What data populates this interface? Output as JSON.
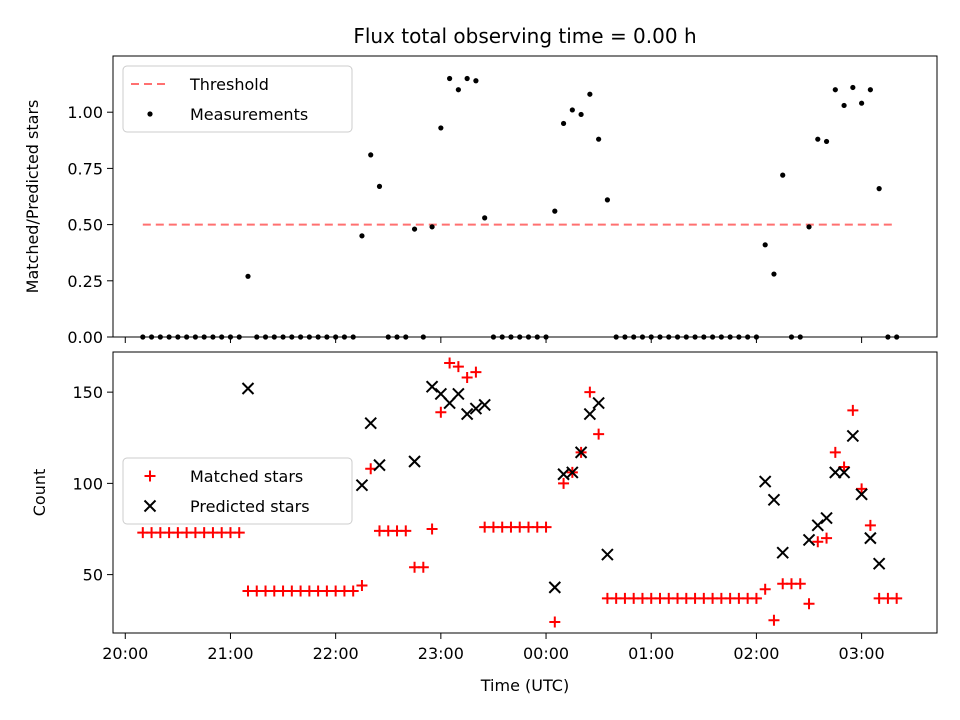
{
  "figure": {
    "title": "Flux total observing time = 0.00 h",
    "xlabel": "Time (UTC)"
  },
  "colors": {
    "threshold": "#ff7070",
    "measurements": "#000000",
    "matched": "#ff0000",
    "predicted": "#000000"
  },
  "chart_data": [
    {
      "type": "scatter",
      "ylabel": "Matched/Predicted stars",
      "xlim": [
        "19:53",
        "03:43"
      ],
      "ylim": [
        0,
        1.25
      ],
      "xticks": [
        "20:00",
        "21:00",
        "22:00",
        "23:00",
        "00:00",
        "01:00",
        "02:00",
        "03:00"
      ],
      "yticks": [
        "0.00",
        "0.25",
        "0.50",
        "0.75",
        "1.00"
      ],
      "legend_position": "top-left",
      "series": [
        {
          "name": "Threshold",
          "style": "dashed-line",
          "x": [
            "20:10",
            "03:20"
          ],
          "y": [
            0.5,
            0.5
          ]
        },
        {
          "name": "Measurements",
          "style": "dot",
          "points": [
            [
              "20:10",
              0
            ],
            [
              "20:15",
              0
            ],
            [
              "20:20",
              0
            ],
            [
              "20:25",
              0
            ],
            [
              "20:30",
              0
            ],
            [
              "20:35",
              0
            ],
            [
              "20:40",
              0
            ],
            [
              "20:45",
              0
            ],
            [
              "20:50",
              0
            ],
            [
              "20:55",
              0
            ],
            [
              "21:00",
              0
            ],
            [
              "21:05",
              0
            ],
            [
              "21:10",
              0.27
            ],
            [
              "21:15",
              0
            ],
            [
              "21:20",
              0
            ],
            [
              "21:25",
              0
            ],
            [
              "21:30",
              0
            ],
            [
              "21:35",
              0
            ],
            [
              "21:40",
              0
            ],
            [
              "21:45",
              0
            ],
            [
              "21:50",
              0
            ],
            [
              "21:55",
              0
            ],
            [
              "22:00",
              0
            ],
            [
              "22:05",
              0
            ],
            [
              "22:10",
              0
            ],
            [
              "22:15",
              0.45
            ],
            [
              "22:20",
              0.81
            ],
            [
              "22:25",
              0.67
            ],
            [
              "22:30",
              0
            ],
            [
              "22:35",
              0
            ],
            [
              "22:40",
              0
            ],
            [
              "22:45",
              0.48
            ],
            [
              "22:50",
              0
            ],
            [
              "22:55",
              0.49
            ],
            [
              "23:00",
              0.93
            ],
            [
              "23:05",
              1.15
            ],
            [
              "23:10",
              1.1
            ],
            [
              "23:15",
              1.15
            ],
            [
              "23:20",
              1.14
            ],
            [
              "23:25",
              0.53
            ],
            [
              "23:30",
              0
            ],
            [
              "23:35",
              0
            ],
            [
              "23:40",
              0
            ],
            [
              "23:45",
              0
            ],
            [
              "23:50",
              0
            ],
            [
              "23:55",
              0
            ],
            [
              "00:00",
              0
            ],
            [
              "00:05",
              0.56
            ],
            [
              "00:10",
              0.95
            ],
            [
              "00:15",
              1.01
            ],
            [
              "00:20",
              0.99
            ],
            [
              "00:25",
              1.08
            ],
            [
              "00:30",
              0.88
            ],
            [
              "00:35",
              0.61
            ],
            [
              "00:40",
              0
            ],
            [
              "00:45",
              0
            ],
            [
              "00:50",
              0
            ],
            [
              "00:55",
              0
            ],
            [
              "01:00",
              0
            ],
            [
              "01:05",
              0
            ],
            [
              "01:10",
              0
            ],
            [
              "01:15",
              0
            ],
            [
              "01:20",
              0
            ],
            [
              "01:25",
              0
            ],
            [
              "01:30",
              0
            ],
            [
              "01:35",
              0
            ],
            [
              "01:40",
              0
            ],
            [
              "01:45",
              0
            ],
            [
              "01:50",
              0
            ],
            [
              "01:55",
              0
            ],
            [
              "02:00",
              0
            ],
            [
              "02:05",
              0.41
            ],
            [
              "02:10",
              0.28
            ],
            [
              "02:15",
              0.72
            ],
            [
              "02:20",
              0
            ],
            [
              "02:25",
              0
            ],
            [
              "02:30",
              0.49
            ],
            [
              "02:35",
              0.88
            ],
            [
              "02:40",
              0.87
            ],
            [
              "02:45",
              1.1
            ],
            [
              "02:50",
              1.03
            ],
            [
              "02:55",
              1.11
            ],
            [
              "03:00",
              1.04
            ],
            [
              "03:05",
              1.1
            ],
            [
              "03:10",
              0.66
            ],
            [
              "03:15",
              0
            ],
            [
              "03:20",
              0
            ]
          ]
        }
      ]
    },
    {
      "type": "scatter",
      "ylabel": "Count",
      "xlim": [
        "19:53",
        "03:43"
      ],
      "ylim": [
        18,
        172
      ],
      "xticks": [
        "20:00",
        "21:00",
        "22:00",
        "23:00",
        "00:00",
        "01:00",
        "02:00",
        "03:00"
      ],
      "yticks": [
        "50",
        "100",
        "150"
      ],
      "legend_position": "center-left",
      "series": [
        {
          "name": "Matched stars",
          "style": "plus",
          "points": [
            [
              "20:10",
              73
            ],
            [
              "20:15",
              73
            ],
            [
              "20:20",
              73
            ],
            [
              "20:25",
              73
            ],
            [
              "20:30",
              73
            ],
            [
              "20:35",
              73
            ],
            [
              "20:40",
              73
            ],
            [
              "20:45",
              73
            ],
            [
              "20:50",
              73
            ],
            [
              "20:55",
              73
            ],
            [
              "21:00",
              73
            ],
            [
              "21:05",
              73
            ],
            [
              "21:10",
              41
            ],
            [
              "21:15",
              41
            ],
            [
              "21:20",
              41
            ],
            [
              "21:25",
              41
            ],
            [
              "21:30",
              41
            ],
            [
              "21:35",
              41
            ],
            [
              "21:40",
              41
            ],
            [
              "21:45",
              41
            ],
            [
              "21:50",
              41
            ],
            [
              "21:55",
              41
            ],
            [
              "22:00",
              41
            ],
            [
              "22:05",
              41
            ],
            [
              "22:10",
              41
            ],
            [
              "22:15",
              44
            ],
            [
              "22:20",
              108
            ],
            [
              "22:25",
              74
            ],
            [
              "22:30",
              74
            ],
            [
              "22:35",
              74
            ],
            [
              "22:40",
              74
            ],
            [
              "22:45",
              54
            ],
            [
              "22:50",
              54
            ],
            [
              "22:55",
              75
            ],
            [
              "23:00",
              139
            ],
            [
              "23:05",
              166
            ],
            [
              "23:10",
              164
            ],
            [
              "23:15",
              158
            ],
            [
              "23:20",
              161
            ],
            [
              "23:25",
              76
            ],
            [
              "23:30",
              76
            ],
            [
              "23:35",
              76
            ],
            [
              "23:40",
              76
            ],
            [
              "23:45",
              76
            ],
            [
              "23:50",
              76
            ],
            [
              "23:55",
              76
            ],
            [
              "00:00",
              76
            ],
            [
              "00:05",
              24
            ],
            [
              "00:10",
              100
            ],
            [
              "00:15",
              106
            ],
            [
              "00:20",
              117
            ],
            [
              "00:25",
              150
            ],
            [
              "00:30",
              127
            ],
            [
              "00:35",
              37
            ],
            [
              "00:40",
              37
            ],
            [
              "00:45",
              37
            ],
            [
              "00:50",
              37
            ],
            [
              "00:55",
              37
            ],
            [
              "01:00",
              37
            ],
            [
              "01:05",
              37
            ],
            [
              "01:10",
              37
            ],
            [
              "01:15",
              37
            ],
            [
              "01:20",
              37
            ],
            [
              "01:25",
              37
            ],
            [
              "01:30",
              37
            ],
            [
              "01:35",
              37
            ],
            [
              "01:40",
              37
            ],
            [
              "01:45",
              37
            ],
            [
              "01:50",
              37
            ],
            [
              "01:55",
              37
            ],
            [
              "02:00",
              37
            ],
            [
              "02:05",
              42
            ],
            [
              "02:10",
              25
            ],
            [
              "02:15",
              45
            ],
            [
              "02:20",
              45
            ],
            [
              "02:25",
              45
            ],
            [
              "02:30",
              34
            ],
            [
              "02:35",
              68
            ],
            [
              "02:40",
              70
            ],
            [
              "02:45",
              117
            ],
            [
              "02:50",
              109
            ],
            [
              "02:55",
              140
            ],
            [
              "03:00",
              97
            ],
            [
              "03:05",
              77
            ],
            [
              "03:10",
              37
            ],
            [
              "03:15",
              37
            ],
            [
              "03:20",
              37
            ]
          ]
        },
        {
          "name": "Predicted stars",
          "style": "x",
          "points": [
            [
              "21:10",
              152
            ],
            [
              "22:15",
              99
            ],
            [
              "22:20",
              133
            ],
            [
              "22:25",
              110
            ],
            [
              "22:45",
              112
            ],
            [
              "22:55",
              153
            ],
            [
              "23:00",
              149
            ],
            [
              "23:05",
              144
            ],
            [
              "23:10",
              149
            ],
            [
              "23:15",
              138
            ],
            [
              "23:20",
              141
            ],
            [
              "23:25",
              143
            ],
            [
              "00:05",
              43
            ],
            [
              "00:10",
              105
            ],
            [
              "00:15",
              106
            ],
            [
              "00:20",
              117
            ],
            [
              "00:25",
              138
            ],
            [
              "00:30",
              144
            ],
            [
              "00:35",
              61
            ],
            [
              "02:05",
              101
            ],
            [
              "02:10",
              91
            ],
            [
              "02:15",
              62
            ],
            [
              "02:30",
              69
            ],
            [
              "02:35",
              77
            ],
            [
              "02:40",
              81
            ],
            [
              "02:45",
              106
            ],
            [
              "02:50",
              106
            ],
            [
              "02:55",
              126
            ],
            [
              "03:00",
              94
            ],
            [
              "03:05",
              70
            ],
            [
              "03:10",
              56
            ]
          ]
        }
      ]
    }
  ]
}
